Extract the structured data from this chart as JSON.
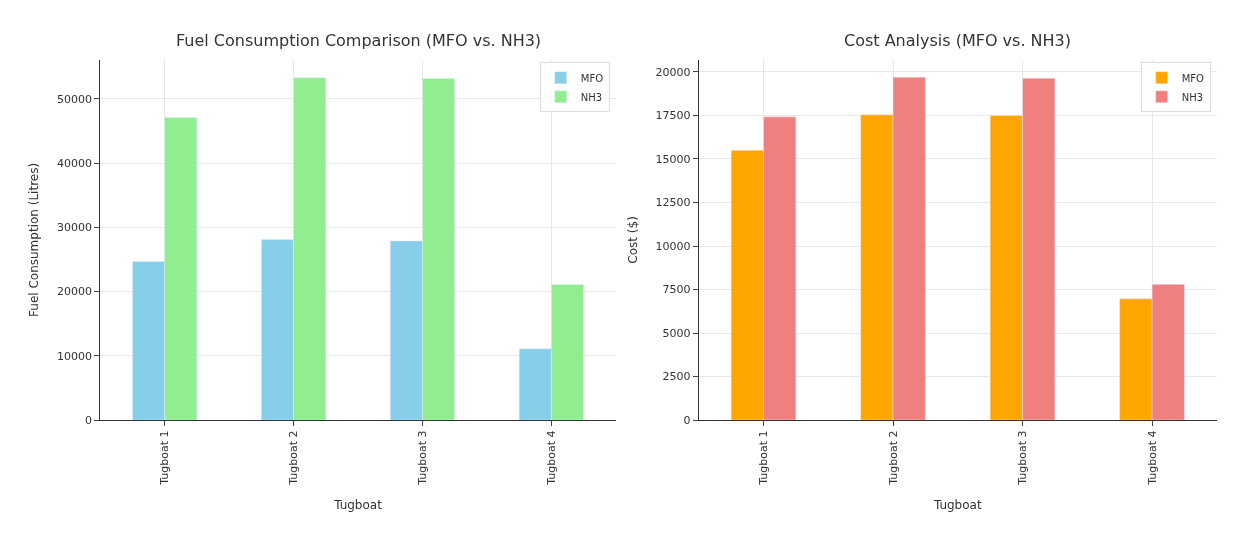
{
  "chart_data": [
    {
      "type": "bar",
      "title": "Fuel Consumption Comparison (MFO vs. NH3)",
      "xlabel": "Tugboat",
      "ylabel": "Fuel Consumption (Litres)",
      "categories": [
        "Tugboat 1",
        "Tugboat 2",
        "Tugboat 3",
        "Tugboat 4"
      ],
      "series": [
        {
          "name": "MFO",
          "color": "#87ceeb",
          "values": [
            24700,
            28100,
            27900,
            11100
          ]
        },
        {
          "name": "NH3",
          "color": "#90ee90",
          "values": [
            47100,
            53300,
            53200,
            21100
          ]
        }
      ],
      "ylim": [
        0,
        56100
      ],
      "yticks": [
        0,
        10000,
        20000,
        30000,
        40000,
        50000
      ],
      "grid": true,
      "legend": "top right"
    },
    {
      "type": "bar",
      "title": "Cost Analysis (MFO vs. NH3)",
      "xlabel": "Tugboat",
      "ylabel": "Cost ($)",
      "categories": [
        "Tugboat 1",
        "Tugboat 2",
        "Tugboat 3",
        "Tugboat 4"
      ],
      "series": [
        {
          "name": "MFO",
          "color": "#ffa500",
          "values": [
            15500,
            17540,
            17500,
            6970
          ]
        },
        {
          "name": "NH3",
          "color": "#f08080",
          "values": [
            17420,
            19700,
            19640,
            7800
          ]
        }
      ],
      "ylim": [
        0,
        20700
      ],
      "yticks": [
        0,
        2500,
        5000,
        7500,
        10000,
        12500,
        15000,
        17500,
        20000
      ],
      "grid": true,
      "legend": "top right"
    }
  ]
}
